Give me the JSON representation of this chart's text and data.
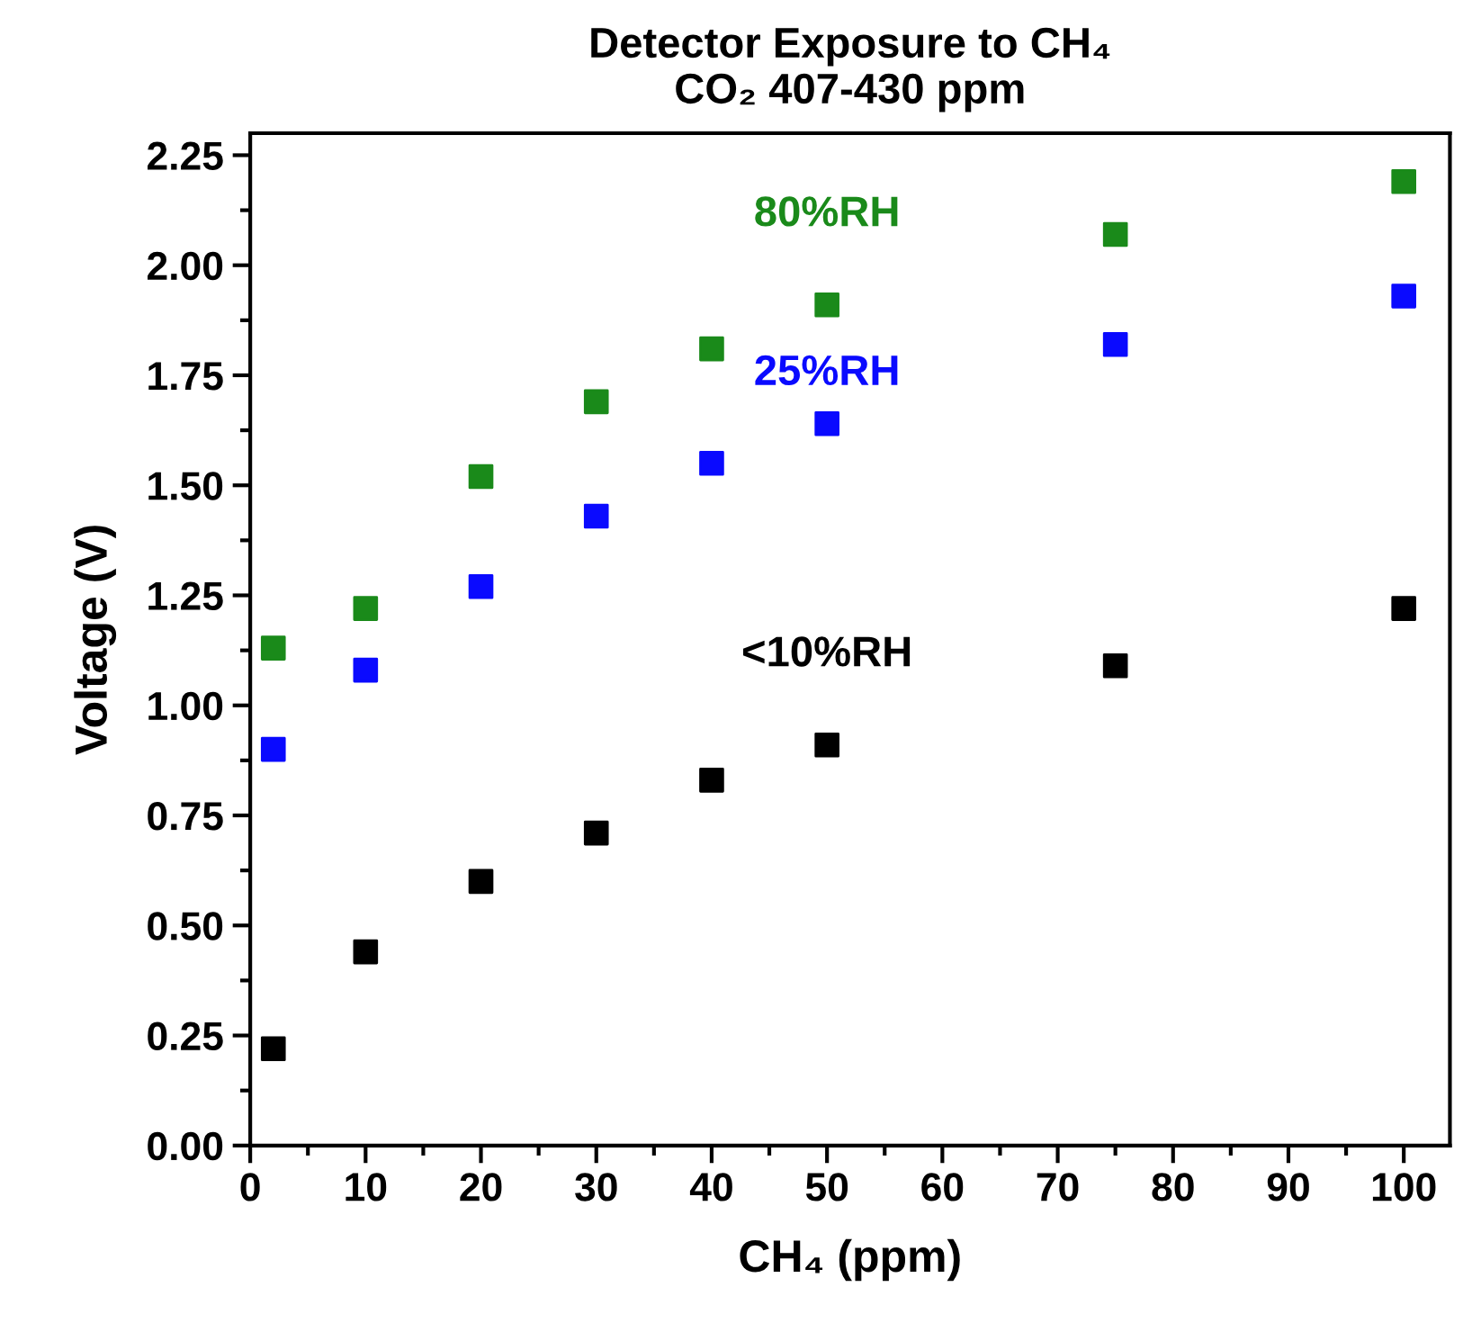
{
  "chart_data": {
    "type": "scatter",
    "title": "Detector Exposure to CH₄\nCO₂ 407-430 ppm",
    "xlabel": "CH₄ (ppm)",
    "ylabel": "Voltage (V)",
    "x": [
      2,
      10,
      20,
      30,
      40,
      50,
      75,
      100
    ],
    "series": [
      {
        "name": "80%RH",
        "color": "#1a8a1a",
        "values": [
          1.13,
          1.22,
          1.52,
          1.69,
          1.81,
          1.91,
          2.07,
          2.19
        ]
      },
      {
        "name": "25%RH",
        "color": "#0a0aff",
        "values": [
          0.9,
          1.08,
          1.27,
          1.43,
          1.55,
          1.64,
          1.82,
          1.93
        ]
      },
      {
        "name": "<10%RH",
        "color": "#000000",
        "values": [
          0.22,
          0.44,
          0.6,
          0.71,
          0.83,
          0.91,
          1.09,
          1.22
        ]
      }
    ],
    "xlim": [
      0,
      104
    ],
    "ylim": [
      0,
      2.3
    ],
    "xticks": [
      0,
      10,
      20,
      30,
      40,
      50,
      60,
      70,
      80,
      90,
      100
    ],
    "yticks": [
      {
        "value": 0,
        "label": "0.00"
      },
      {
        "value": 0.25,
        "label": "0.25"
      },
      {
        "value": 0.5,
        "label": "0.50"
      },
      {
        "value": 0.75,
        "label": "0.75"
      },
      {
        "value": 1,
        "label": "1.00"
      },
      {
        "value": 1.25,
        "label": "1.25"
      },
      {
        "value": 1.5,
        "label": "1.50"
      },
      {
        "value": 1.75,
        "label": "1.75"
      },
      {
        "value": 2,
        "label": "2.00"
      },
      {
        "value": 2.25,
        "label": "2.25"
      }
    ],
    "marker": "square",
    "grid": false,
    "legend": false
  }
}
